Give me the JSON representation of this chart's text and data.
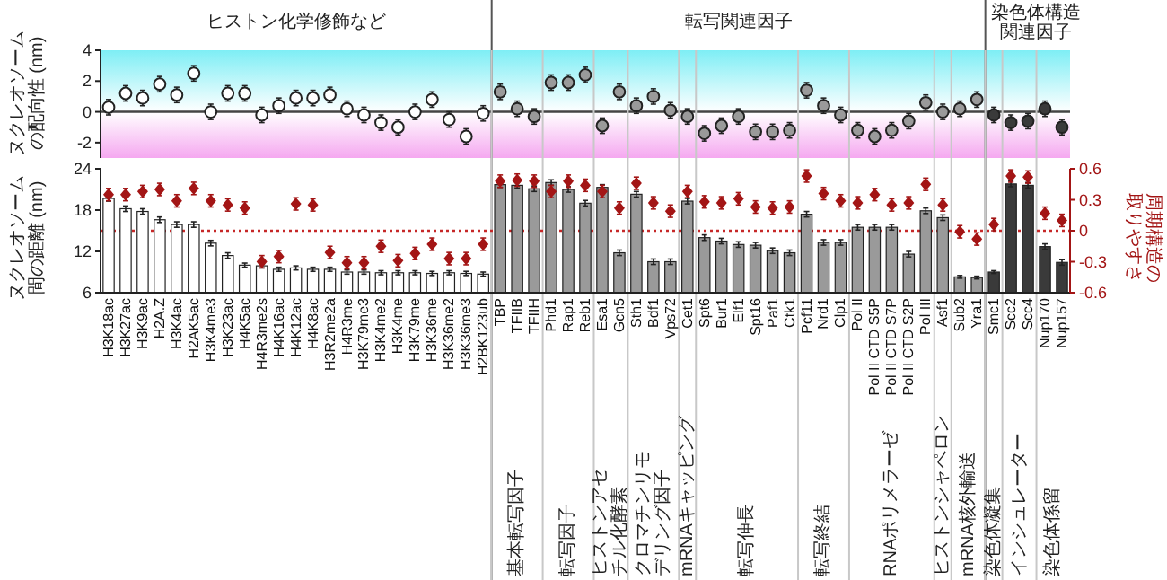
{
  "chart_data": [
    {
      "type": "scatter",
      "ylabel": "ヌクレオソームの配向性 (nm)",
      "tick_labels": "y",
      "marker": "circle",
      "categories": [
        "H3K18ac",
        "H3K27ac",
        "H3K9ac",
        "H2A.Z",
        "H3K4ac",
        "H2AK5ac",
        "H3K4me3",
        "H3K23ac",
        "H4K5ac",
        "H4R3me2s",
        "H4K16ac",
        "H4K12ac",
        "H4K8ac",
        "H3R2me2a",
        "H4R3me",
        "H3K79me3",
        "H3K4me2",
        "H3K4me",
        "H3K79me",
        "H3K36me",
        "H3K36me2",
        "H3K36me3",
        "H2BK123ub",
        "TBP",
        "TFIIB",
        "TFIIH",
        "Phd1",
        "Rap1",
        "Reb1",
        "Esa1",
        "Gcn5",
        "Sth1",
        "Bdf1",
        "Vps72",
        "Cet1",
        "Spt6",
        "Bur1",
        "Elf1",
        "Spt16",
        "Paf1",
        "Ctk1",
        "Pcf11",
        "Nrd1",
        "Clp1",
        "Pol II",
        "Pol II CTD S5P",
        "Pol II CTD S7P",
        "Pol II CTD S2P",
        "Pol III",
        "Asf1",
        "Sub2",
        "Yra1",
        "Smc1",
        "Scc2",
        "Scc4",
        "Nup170",
        "Nup157"
      ],
      "values": [
        0.3,
        1.2,
        0.9,
        1.8,
        1.1,
        2.5,
        0.0,
        1.2,
        1.2,
        -0.2,
        0.4,
        0.9,
        0.9,
        1.1,
        0.2,
        -0.2,
        -0.7,
        -1.0,
        0.0,
        0.8,
        -0.5,
        -1.6,
        -0.1,
        1.3,
        0.2,
        -0.3,
        1.9,
        1.9,
        2.4,
        -0.9,
        1.3,
        0.4,
        1.0,
        0.1,
        -0.3,
        -1.4,
        -0.9,
        -0.3,
        -1.3,
        -1.3,
        -1.2,
        1.4,
        0.4,
        -0.2,
        -1.2,
        -1.6,
        -1.2,
        -0.6,
        0.6,
        0.0,
        0.2,
        0.8,
        -0.2,
        -0.7,
        -0.6,
        0.2,
        -1.0
      ],
      "errors": [
        0.5,
        0.5,
        0.5,
        0.5,
        0.5,
        0.5,
        0.5,
        0.5,
        0.5,
        0.5,
        0.5,
        0.5,
        0.5,
        0.5,
        0.5,
        0.5,
        0.5,
        0.5,
        0.5,
        0.5,
        0.5,
        0.5,
        0.5,
        0.5,
        0.5,
        0.5,
        0.5,
        0.5,
        0.5,
        0.5,
        0.5,
        0.5,
        0.5,
        0.5,
        0.5,
        0.5,
        0.5,
        0.5,
        0.5,
        0.5,
        0.5,
        0.5,
        0.5,
        0.5,
        0.5,
        0.5,
        0.5,
        0.5,
        0.5,
        0.5,
        0.5,
        0.5,
        0.5,
        0.5,
        0.5,
        0.5,
        0.5
      ],
      "colors": [
        "#ffffff",
        "#ffffff",
        "#ffffff",
        "#ffffff",
        "#ffffff",
        "#ffffff",
        "#ffffff",
        "#ffffff",
        "#ffffff",
        "#ffffff",
        "#ffffff",
        "#ffffff",
        "#ffffff",
        "#ffffff",
        "#ffffff",
        "#ffffff",
        "#ffffff",
        "#ffffff",
        "#ffffff",
        "#ffffff",
        "#ffffff",
        "#ffffff",
        "#ffffff",
        "#9a9a9a",
        "#9a9a9a",
        "#9a9a9a",
        "#9a9a9a",
        "#9a9a9a",
        "#9a9a9a",
        "#9a9a9a",
        "#9a9a9a",
        "#9a9a9a",
        "#9a9a9a",
        "#9a9a9a",
        "#9a9a9a",
        "#9a9a9a",
        "#9a9a9a",
        "#9a9a9a",
        "#9a9a9a",
        "#9a9a9a",
        "#9a9a9a",
        "#9a9a9a",
        "#9a9a9a",
        "#9a9a9a",
        "#9a9a9a",
        "#9a9a9a",
        "#9a9a9a",
        "#9a9a9a",
        "#9a9a9a",
        "#9a9a9a",
        "#9a9a9a",
        "#9a9a9a",
        "#3a3a3a",
        "#3a3a3a",
        "#3a3a3a",
        "#3a3a3a",
        "#3a3a3a"
      ],
      "ylim": [
        -3,
        4
      ],
      "yticks": [
        -2,
        0,
        2,
        4
      ],
      "ref_lines": [
        {
          "axis": "y",
          "value": 0,
          "color": "#444444"
        }
      ],
      "bands": [
        {
          "axis": "y",
          "from": 0,
          "to": 4,
          "color": "#7eeef5"
        },
        {
          "axis": "y",
          "from": 0,
          "to": -3,
          "color": "#f5a8f0"
        }
      ],
      "annotations": [
        "ヒストン化学修飾など",
        "転写関連因子",
        "染色体構造関連因子"
      ]
    },
    {
      "type": "bar",
      "ylabel": "ヌクレオソーム間の距離 (nm)",
      "y2label": "周期構造の取りやすさ",
      "categories": [
        "H3K18ac",
        "H3K27ac",
        "H3K9ac",
        "H2A.Z",
        "H3K4ac",
        "H2AK5ac",
        "H3K4me3",
        "H3K23ac",
        "H4K5ac",
        "H4R3me2s",
        "H4K16ac",
        "H4K12ac",
        "H4K8ac",
        "H3R2me2a",
        "H4R3me",
        "H3K79me3",
        "H3K4me2",
        "H3K4me",
        "H3K79me",
        "H3K36me",
        "H3K36me2",
        "H3K36me3",
        "H2BK123ub",
        "TBP",
        "TFIIB",
        "TFIIH",
        "Phd1",
        "Rap1",
        "Reb1",
        "Esa1",
        "Gcn5",
        "Sth1",
        "Bdf1",
        "Vps72",
        "Cet1",
        "Spt6",
        "Bur1",
        "Elf1",
        "Spt16",
        "Paf1",
        "Ctk1",
        "Pcf11",
        "Nrd1",
        "Clp1",
        "Pol II",
        "Pol II CTD S5P",
        "Pol II CTD S7P",
        "Pol II CTD S2P",
        "Pol III",
        "Asf1",
        "Sub2",
        "Yra1",
        "Smc1",
        "Scc2",
        "Scc4",
        "Nup170",
        "Nup157"
      ],
      "ylim": [
        6,
        24
      ],
      "yticks": [
        6,
        12,
        18,
        24
      ],
      "y2lim": [
        -0.6,
        0.6
      ],
      "y2ticks": [
        -0.6,
        -0.3,
        0,
        0.3,
        0.6
      ],
      "series": [
        {
          "type": "bar",
          "values": [
            19.7,
            18.2,
            17.8,
            16.6,
            15.9,
            15.9,
            13.2,
            11.4,
            10.0,
            9.9,
            9.4,
            9.6,
            9.4,
            9.4,
            9.0,
            9.0,
            8.9,
            8.9,
            8.9,
            8.8,
            8.9,
            8.8,
            8.7,
            21.7,
            21.6,
            21.1,
            22.0,
            21.0,
            19.0,
            21.3,
            11.8,
            20.3,
            10.5,
            10.5,
            19.3,
            14.0,
            13.5,
            13.0,
            12.9,
            12.1,
            11.8,
            17.4,
            13.3,
            13.3,
            15.5,
            15.5,
            15.5,
            11.6,
            17.9,
            16.9,
            8.3,
            8.2,
            9.0,
            21.8,
            21.6,
            12.7,
            10.4
          ],
          "errors": [
            0.4,
            0.4,
            0.4,
            0.4,
            0.4,
            0.4,
            0.4,
            0.4,
            0.3,
            0.3,
            0.3,
            0.3,
            0.3,
            0.3,
            0.3,
            0.3,
            0.3,
            0.3,
            0.3,
            0.3,
            0.3,
            0.3,
            0.3,
            0.4,
            0.4,
            0.4,
            0.4,
            0.4,
            0.4,
            0.4,
            0.4,
            0.4,
            0.4,
            0.4,
            0.4,
            0.4,
            0.4,
            0.4,
            0.4,
            0.4,
            0.4,
            0.4,
            0.4,
            0.4,
            0.4,
            0.4,
            0.4,
            0.4,
            0.4,
            0.4,
            0.2,
            0.2,
            0.2,
            0.4,
            0.4,
            0.4,
            0.4
          ],
          "colors": [
            "#ffffff",
            "#ffffff",
            "#ffffff",
            "#ffffff",
            "#ffffff",
            "#ffffff",
            "#ffffff",
            "#ffffff",
            "#ffffff",
            "#ffffff",
            "#ffffff",
            "#ffffff",
            "#ffffff",
            "#ffffff",
            "#ffffff",
            "#ffffff",
            "#ffffff",
            "#ffffff",
            "#ffffff",
            "#ffffff",
            "#ffffff",
            "#ffffff",
            "#ffffff",
            "#9a9a9a",
            "#9a9a9a",
            "#9a9a9a",
            "#9a9a9a",
            "#9a9a9a",
            "#9a9a9a",
            "#9a9a9a",
            "#9a9a9a",
            "#9a9a9a",
            "#9a9a9a",
            "#9a9a9a",
            "#9a9a9a",
            "#9a9a9a",
            "#9a9a9a",
            "#9a9a9a",
            "#9a9a9a",
            "#9a9a9a",
            "#9a9a9a",
            "#9a9a9a",
            "#9a9a9a",
            "#9a9a9a",
            "#9a9a9a",
            "#9a9a9a",
            "#9a9a9a",
            "#9a9a9a",
            "#9a9a9a",
            "#9a9a9a",
            "#9a9a9a",
            "#9a9a9a",
            "#3a3a3a",
            "#3a3a3a",
            "#3a3a3a",
            "#3a3a3a",
            "#3a3a3a"
          ]
        },
        {
          "type": "scatter",
          "axis": "y2",
          "color": "#a31515",
          "marker": "diamond",
          "values": [
            0.35,
            0.35,
            0.38,
            0.4,
            0.29,
            0.41,
            0.29,
            0.25,
            0.22,
            -0.3,
            -0.25,
            0.26,
            0.25,
            -0.21,
            -0.31,
            -0.31,
            -0.15,
            -0.29,
            -0.22,
            -0.13,
            -0.27,
            -0.27,
            -0.13,
            0.48,
            0.49,
            0.48,
            0.38,
            0.48,
            0.44,
            0.38,
            0.22,
            0.46,
            0.27,
            0.19,
            0.38,
            0.28,
            0.27,
            0.31,
            0.23,
            0.22,
            0.23,
            0.53,
            0.36,
            0.29,
            0.27,
            0.35,
            0.25,
            0.27,
            0.45,
            0.25,
            -0.01,
            -0.08,
            0.06,
            0.53,
            0.52,
            0.17,
            0.1
          ],
          "errors": [
            0.06,
            0.06,
            0.06,
            0.06,
            0.06,
            0.06,
            0.06,
            0.06,
            0.06,
            0.06,
            0.06,
            0.06,
            0.06,
            0.06,
            0.06,
            0.06,
            0.06,
            0.06,
            0.06,
            0.06,
            0.06,
            0.06,
            0.06,
            0.06,
            0.06,
            0.06,
            0.06,
            0.06,
            0.06,
            0.06,
            0.06,
            0.06,
            0.06,
            0.06,
            0.06,
            0.06,
            0.06,
            0.06,
            0.06,
            0.06,
            0.06,
            0.06,
            0.06,
            0.06,
            0.06,
            0.06,
            0.06,
            0.06,
            0.06,
            0.06,
            0.06,
            0.06,
            0.06,
            0.06,
            0.06,
            0.06,
            0.06
          ]
        }
      ],
      "ref_lines": [
        {
          "axis": "y2",
          "value": 0,
          "color": "#c62828",
          "line_style": "dotted"
        }
      ],
      "annotations": [
        "基本転写因子",
        "転写因子",
        "ヒストンアセチル化酵素",
        "クロマチンリモデリング因子",
        "mRNAキャッピング",
        "転写伸長",
        "転写終結",
        "RNAポリメラーゼ",
        "ヒストンシャペロン",
        "mRNA核外輸送",
        "染色体凝集",
        "インシュレーター",
        "染色体係留"
      ]
    }
  ]
}
